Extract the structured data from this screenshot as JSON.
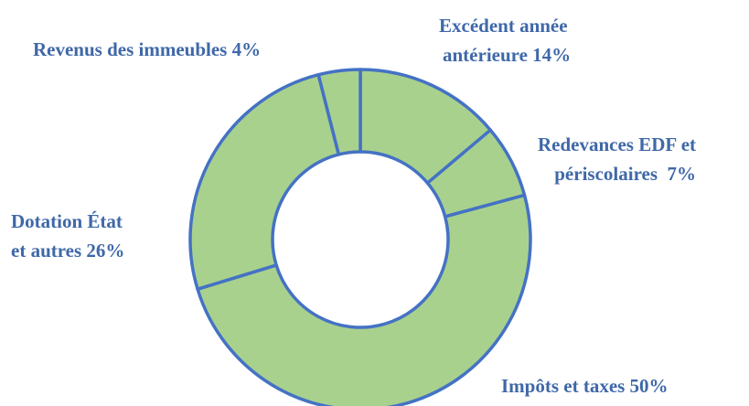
{
  "chart_data": {
    "type": "pie",
    "donut": true,
    "slices": [
      {
        "label_lines": [
          "Excédent année",
          "antérieure 14%"
        ],
        "value": 14
      },
      {
        "label_lines": [
          "Redevances EDF et",
          "périscolaires  7%"
        ],
        "value": 7
      },
      {
        "label_lines": [
          "Impôts et taxes 50%"
        ],
        "value": 50
      },
      {
        "label_lines": [
          "Dotation État",
          "et autres 26%"
        ],
        "value": 26
      },
      {
        "label_lines": [
          "Revenus des immeubles 4%"
        ],
        "value": 4
      }
    ],
    "colors": {
      "fill": "#a9d18e",
      "stroke": "#4472c4",
      "label": "#3f68a8"
    },
    "legend": "none"
  }
}
